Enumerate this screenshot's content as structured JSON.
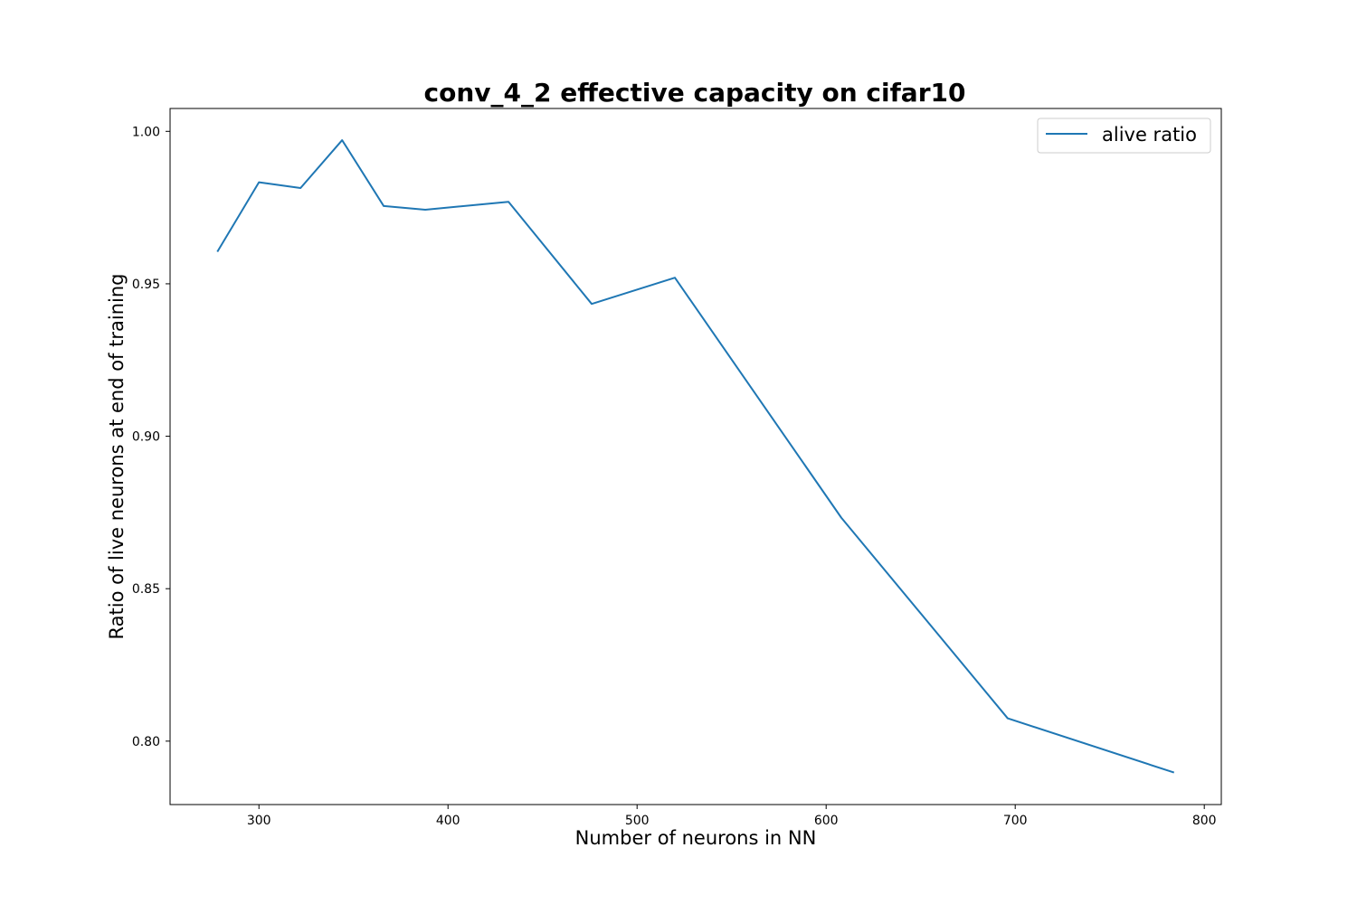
{
  "chart_data": {
    "type": "line",
    "title": "conv_4_2 effective capacity on cifar10",
    "xlabel": "Number of neurons in NN",
    "ylabel": "Ratio of live neurons at end of training",
    "xlim": [
      253,
      809
    ],
    "ylim": [
      0.7792,
      1.0075
    ],
    "xticks": [
      300,
      400,
      500,
      600,
      700,
      800
    ],
    "xtick_labels": [
      "300",
      "400",
      "500",
      "600",
      "700",
      "800"
    ],
    "yticks": [
      0.8,
      0.85,
      0.9,
      0.95,
      1.0
    ],
    "ytick_labels": [
      "0.80",
      "0.85",
      "0.90",
      "0.95",
      "1.00"
    ],
    "grid": false,
    "legend_position": "top-right",
    "series": [
      {
        "name": "alive ratio",
        "color": "#1f77b4",
        "x": [
          278,
          300,
          322,
          344,
          366,
          388,
          432,
          476,
          520,
          608,
          696,
          784
        ],
        "y": [
          0.9605,
          0.9833,
          0.9814,
          0.9971,
          0.9755,
          0.9743,
          0.9769,
          0.9434,
          0.952,
          0.8733,
          0.8075,
          0.7897
        ]
      }
    ]
  }
}
